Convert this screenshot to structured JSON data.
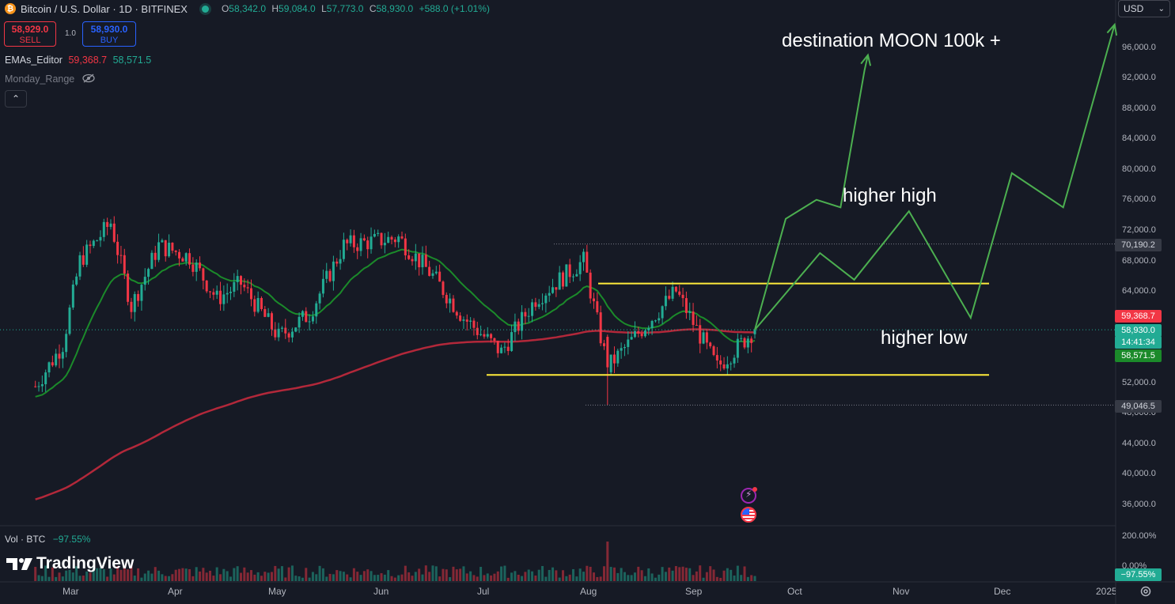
{
  "header": {
    "symbol_title": "Bitcoin / U.S. Dollar · 1D · BITFINEX",
    "open_key": "O",
    "open": "58,342.0",
    "high_key": "H",
    "high": "59,084.0",
    "low_key": "L",
    "low": "57,773.0",
    "close_key": "C",
    "close": "58,930.0",
    "change": "+588.0 (+1.01%)"
  },
  "trade": {
    "sell_price": "58,929.0",
    "sell_label": "SELL",
    "quantity": "1.0",
    "buy_price": "58,930.0",
    "buy_label": "BUY"
  },
  "indicators": {
    "ema_name": "EMAs_Editor",
    "ema_slow_value": "59,368.7",
    "ema_fast_value": "58,571.5",
    "monday_range": "Monday_Range"
  },
  "currency": "USD",
  "price_axis": [
    "96,000.0",
    "92,000.0",
    "88,000.0",
    "84,000.0",
    "80,000.0",
    "76,000.0",
    "72,000.0",
    "68,000.0",
    "64,000.0",
    "52,000.0",
    "48,000.0",
    "44,000.0",
    "40,000.0",
    "36,000.0"
  ],
  "price_tags": {
    "high_line": "70,190.2",
    "ema_slow": "59,368.7",
    "last_price": "58,930.0",
    "countdown": "14:41:34",
    "ema_fast": "58,571.5",
    "low_line": "49,046.5"
  },
  "time_axis": [
    "Mar",
    "Apr",
    "May",
    "Jun",
    "Jul",
    "Aug",
    "Sep",
    "Oct",
    "Nov",
    "Dec",
    "2025"
  ],
  "annotations": {
    "moon": "destination MOON 100k +",
    "higher_high": "higher high",
    "higher_low": "higher low"
  },
  "volume": {
    "label": "Vol · BTC",
    "value": "−97.55%",
    "axis_top": "200.00%",
    "axis_mid": "0.00%",
    "tag": "−97.55%"
  },
  "brand": "TradingView",
  "colors": {
    "up": "#22ab94",
    "down": "#f23645",
    "ema_fast": "#1b8a2a",
    "ema_slow": "#b2283a",
    "range_line": "#ffeb3b",
    "projection": "#4caf50"
  },
  "icons": [
    "bitcoin-icon",
    "live-dot-icon",
    "eye-off-icon",
    "chevron-up-icon",
    "chevron-down-icon",
    "settings-icon",
    "lightning-event-icon",
    "us-flag-event-icon"
  ],
  "chart_data": {
    "type": "candlestick",
    "symbol": "BTCUSD",
    "interval": "1D",
    "ylim": [
      33000,
      100000
    ],
    "months": [
      "Mar",
      "Apr",
      "May",
      "Jun",
      "Jul",
      "Aug",
      "Sep",
      "Oct",
      "Nov",
      "Dec",
      "2025"
    ],
    "close_path": [
      {
        "date": "2024-02-20",
        "close": 51500
      },
      {
        "date": "2024-02-28",
        "close": 57000
      },
      {
        "date": "2024-03-04",
        "close": 68000
      },
      {
        "date": "2024-03-13",
        "close": 73000
      },
      {
        "date": "2024-03-19",
        "close": 62000
      },
      {
        "date": "2024-03-27",
        "close": 70000
      },
      {
        "date": "2024-04-05",
        "close": 68500
      },
      {
        "date": "2024-04-13",
        "close": 63000
      },
      {
        "date": "2024-04-20",
        "close": 65000
      },
      {
        "date": "2024-05-01",
        "close": 58000
      },
      {
        "date": "2024-05-10",
        "close": 61000
      },
      {
        "date": "2024-05-20",
        "close": 70000
      },
      {
        "date": "2024-06-05",
        "close": 71000
      },
      {
        "date": "2024-06-15",
        "close": 66000
      },
      {
        "date": "2024-06-24",
        "close": 60500
      },
      {
        "date": "2024-07-05",
        "close": 56000
      },
      {
        "date": "2024-07-15",
        "close": 63000
      },
      {
        "date": "2024-07-29",
        "close": 68000
      },
      {
        "date": "2024-08-05",
        "close": 54000
      },
      {
        "date": "2024-08-15",
        "close": 59000
      },
      {
        "date": "2024-08-25",
        "close": 64000
      },
      {
        "date": "2024-09-06",
        "close": 54000
      },
      {
        "date": "2024-09-17",
        "close": 58930
      }
    ],
    "ema_slow_value": 59368.7,
    "ema_fast_value": 58571.5,
    "range_lines": [
      65000,
      53000
    ],
    "dotted_levels": [
      70190.2,
      49046.5
    ],
    "projection_paths": [
      [
        {
          "date": "2024-09-17",
          "price": 58930
        },
        {
          "date": "2024-09-26",
          "price": 73500
        },
        {
          "date": "2024-10-05",
          "price": 76000
        },
        {
          "date": "2024-10-12",
          "price": 75000
        },
        {
          "date": "2024-10-19",
          "price": 93000
        },
        {
          "date": "2024-10-20",
          "price": 95000
        }
      ],
      [
        {
          "date": "2024-09-17",
          "price": 58930
        },
        {
          "date": "2024-10-06",
          "price": 69000
        },
        {
          "date": "2024-10-16",
          "price": 65500
        },
        {
          "date": "2024-11-01",
          "price": 74500
        },
        {
          "date": "2024-11-19",
          "price": 60500
        },
        {
          "date": "2024-12-01",
          "price": 79500
        },
        {
          "date": "2024-12-16",
          "price": 75000
        },
        {
          "date": "2024-12-31",
          "price": 99000
        }
      ]
    ],
    "volume_spike": {
      "date": "2024-08-05",
      "pct": 200
    }
  }
}
